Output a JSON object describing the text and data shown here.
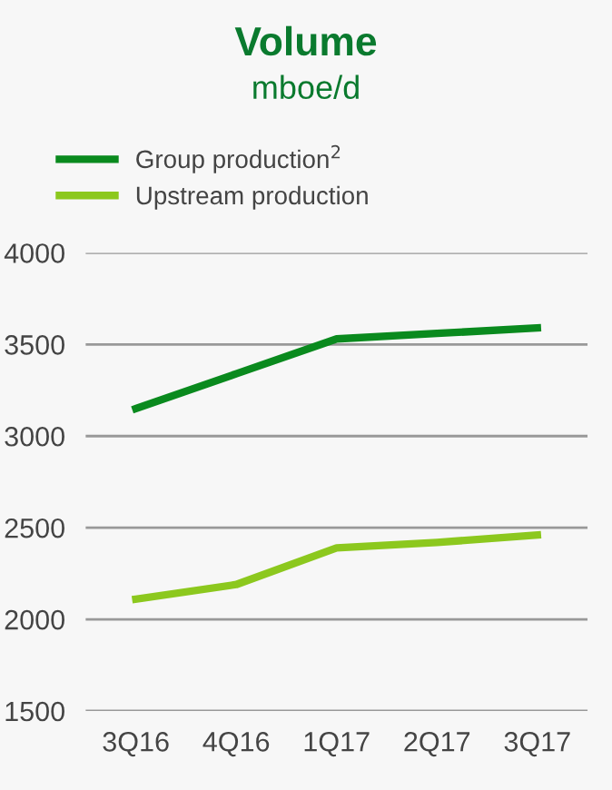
{
  "chart_data": {
    "type": "line",
    "title": "Volume",
    "subtitle": "mboe/d",
    "categories": [
      "3Q16",
      "4Q16",
      "1Q17",
      "2Q17",
      "3Q17"
    ],
    "series": [
      {
        "name": "Group production$^{2}$",
        "color": "#0a8a1e",
        "values": [
          3150,
          3340,
          3530,
          3560,
          3590
        ]
      },
      {
        "name": "Upstream production",
        "color": "#8cc81e",
        "values": [
          2110,
          2190,
          2390,
          2420,
          2460
        ]
      }
    ],
    "ylim": [
      1500,
      4000
    ],
    "yticks": [
      1500,
      2000,
      2500,
      3000,
      3500,
      4000
    ],
    "grid": "y",
    "legend": "top",
    "marker": "none",
    "line_style": "solid"
  }
}
